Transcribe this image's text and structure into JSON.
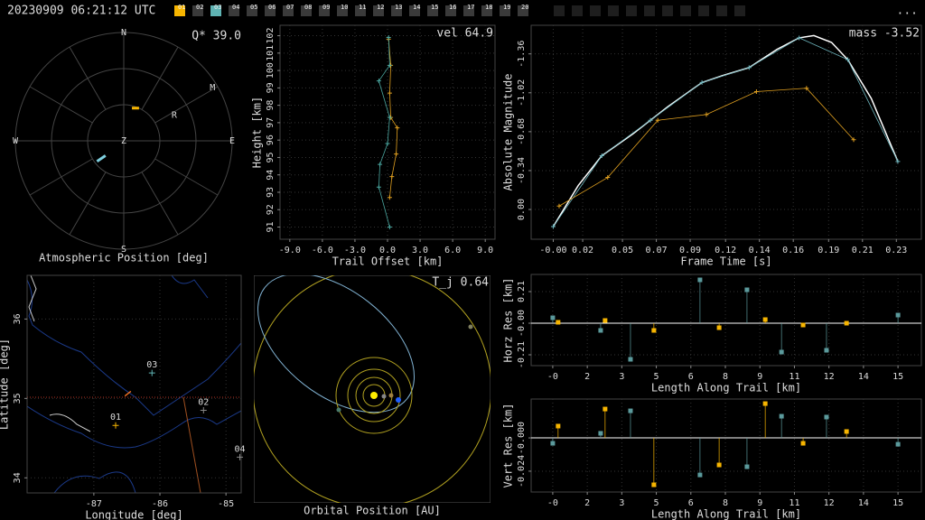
{
  "header": {
    "timestamp": "20230909 06:21:12 UTC",
    "menu": "...",
    "tabs": [
      "01",
      "02",
      "03",
      "04",
      "05",
      "06",
      "07",
      "08",
      "09",
      "10",
      "11",
      "12",
      "13",
      "14",
      "15",
      "16",
      "17",
      "18",
      "19",
      "20"
    ]
  },
  "chart_data": [
    {
      "type": "polar",
      "title": "Atmospheric Position [deg]",
      "annotation": "Q* 39.0",
      "compass": [
        "N",
        "E",
        "S",
        "W"
      ],
      "zenith_label": "Z",
      "rlim": [
        0,
        90
      ],
      "markers": [
        {
          "label": "M",
          "az": 59,
          "zd": 86
        },
        {
          "label": "R",
          "az": 63,
          "zd": 47
        }
      ],
      "series": [
        {
          "color": "#f7b500",
          "az": [
            14,
            25
          ],
          "zd": [
            28,
            30
          ]
        },
        {
          "color": "#7fd0e0",
          "az": [
            232.5,
            231
          ],
          "zd": [
            28,
            19.5
          ]
        }
      ]
    },
    {
      "type": "line",
      "xlabel": "Trail Offset [km]",
      "ylabel": "Height [km]",
      "annotation": "vel 64.9",
      "xlim": [
        -9.9,
        9.9
      ],
      "ylim": [
        90.3,
        102.6
      ],
      "grid": true,
      "xticks": [
        {
          "value": -9,
          "label": "-9.0"
        },
        {
          "value": -6,
          "label": "-6.0"
        },
        {
          "value": -3,
          "label": "-3.0"
        },
        {
          "value": 0,
          "label": "0.0"
        },
        {
          "value": 3,
          "label": "3.0"
        },
        {
          "value": 6,
          "label": "6.0"
        },
        {
          "value": 9,
          "label": "9.0"
        }
      ],
      "yticks": [
        91,
        92,
        93,
        94,
        95,
        96,
        97,
        98,
        99,
        100,
        101,
        102
      ],
      "series": [
        {
          "color": "#e0a020",
          "marker": "+",
          "x": [
            0.1,
            0.3,
            0.2,
            0.3,
            0.9,
            0.8,
            0.4,
            0.2
          ],
          "values": [
            101.8,
            100.3,
            98.7,
            97.3,
            96.7,
            95.2,
            93.9,
            92.7
          ]
        },
        {
          "color": "#4aa7a0",
          "marker": "+",
          "x": [
            0.1,
            0.2,
            -0.8,
            0.2,
            0,
            -0.7,
            -0.8,
            0.2
          ],
          "values": [
            101.9,
            100.3,
            99.4,
            97.3,
            95.8,
            94.6,
            93.3,
            91.0
          ]
        }
      ]
    },
    {
      "type": "line",
      "xlabel": "Frame Time [s]",
      "ylabel": "Absolute Magnitude",
      "annotation": "mass -3.52",
      "xlim": [
        -0.015,
        0.25
      ],
      "ylim": [
        0.26,
        -1.61
      ],
      "grid": true,
      "xticks": [
        {
          "value": 0,
          "label": "-0.00"
        },
        0.02,
        {
          "value": 0.047,
          "label": "0.05"
        },
        {
          "value": 0.07,
          "label": "0.07"
        },
        {
          "value": 0.093,
          "label": "0.09"
        },
        {
          "value": 0.117,
          "label": "0.12"
        },
        {
          "value": 0.14,
          "label": "0.14"
        },
        {
          "value": 0.163,
          "label": "0.16"
        },
        {
          "value": 0.187,
          "label": "0.19"
        },
        {
          "value": 0.21,
          "label": "0.21"
        },
        {
          "value": 0.233,
          "label": "0.23"
        }
      ],
      "yticks": [
        {
          "value": 0,
          "label": "0.00"
        },
        -0.34,
        -0.68,
        -1.02,
        -1.36
      ],
      "series": [
        {
          "color": "#ffffff",
          "marker": "none",
          "x": [
            0,
            0.017,
            0.033,
            0.054,
            0.078,
            0.101,
            0.115,
            0.133,
            0.152,
            0.167,
            0.177,
            0.189,
            0.2,
            0.216,
            0.234
          ],
          "values": [
            0.15,
            -0.21,
            -0.47,
            -0.66,
            -0.9,
            -1.11,
            -1.17,
            -1.24,
            -1.4,
            -1.5,
            -1.52,
            -1.46,
            -1.31,
            -0.97,
            -0.42
          ]
        },
        {
          "color": "#6fb8c0",
          "marker": "+",
          "x": [
            0,
            0.033,
            0.066,
            0.101,
            0.133,
            0.167,
            0.2,
            0.234
          ],
          "values": [
            0.15,
            -0.47,
            -0.78,
            -1.11,
            -1.24,
            -1.5,
            -1.31,
            -0.42
          ]
        },
        {
          "color": "#e0a020",
          "marker": "+",
          "x": [
            0.004,
            0.037,
            0.071,
            0.104,
            0.138,
            0.172,
            0.204
          ],
          "values": [
            -0.03,
            -0.28,
            -0.78,
            -0.83,
            -1.03,
            -1.06,
            -0.61
          ]
        }
      ]
    },
    {
      "type": "stem",
      "xlabel": "Length Along Trail [km]",
      "ylabel": "Horz Res [km]",
      "xlim": [
        -0.97,
        16.55
      ],
      "ylim": [
        -0.282,
        0.324
      ],
      "grid": true,
      "xticks": [
        {
          "value": 0,
          "label": "-0"
        },
        {
          "value": 1.55,
          "label": "2"
        },
        {
          "value": 3.1,
          "label": "3"
        },
        {
          "value": 4.65,
          "label": "5"
        },
        {
          "value": 6.2,
          "label": "6"
        },
        {
          "value": 7.75,
          "label": "8"
        },
        {
          "value": 9.3,
          "label": "9"
        },
        {
          "value": 10.85,
          "label": "11"
        },
        {
          "value": 12.4,
          "label": "12"
        },
        {
          "value": 13.95,
          "label": "14"
        },
        {
          "value": 15.5,
          "label": "15"
        }
      ],
      "yticks": [
        0.21,
        {
          "value": 0,
          "label": "-0.00"
        },
        -0.21
      ],
      "series": [
        {
          "color": "#5b9a9c",
          "x": [
            0,
            2.15,
            3.49,
            6.61,
            8.72,
            10.27,
            12.29,
            15.5
          ],
          "values": [
            0.036,
            -0.048,
            -0.24,
            0.288,
            0.222,
            -0.192,
            -0.18,
            0.054
          ]
        },
        {
          "color": "#f7b500",
          "x": [
            0.24,
            2.35,
            4.54,
            7.47,
            9.54,
            11.24,
            13.19
          ],
          "values": [
            0.006,
            0.018,
            -0.048,
            -0.03,
            0.024,
            -0.012,
            0
          ]
        }
      ]
    },
    {
      "type": "stem",
      "xlabel": "Length Along Trail [km]",
      "ylabel": "Vert Res [km]",
      "xlim": [
        -0.97,
        16.55
      ],
      "ylim": [
        -0.039,
        0.028
      ],
      "grid": true,
      "xticks": [
        {
          "value": 0,
          "label": "-0"
        },
        {
          "value": 1.55,
          "label": "2"
        },
        {
          "value": 3.1,
          "label": "3"
        },
        {
          "value": 4.65,
          "label": "5"
        },
        {
          "value": 6.2,
          "label": "6"
        },
        {
          "value": 7.75,
          "label": "8"
        },
        {
          "value": 9.3,
          "label": "9"
        },
        {
          "value": 10.85,
          "label": "11"
        },
        {
          "value": 12.4,
          "label": "12"
        },
        {
          "value": 13.95,
          "label": "14"
        },
        {
          "value": 15.5,
          "label": "15"
        }
      ],
      "yticks": [
        {
          "value": 0,
          "label": "-0.000"
        },
        -0.024
      ],
      "series": [
        {
          "color": "#5b9a9c",
          "x": [
            0,
            2.15,
            3.49,
            6.61,
            8.72,
            10.27,
            12.29,
            15.5
          ],
          "values": [
            -0.0039,
            0.0033,
            0.0195,
            -0.0267,
            -0.0208,
            0.0156,
            0.015,
            -0.0046
          ]
        },
        {
          "color": "#f7b500",
          "x": [
            0.24,
            2.35,
            4.54,
            7.47,
            9.54,
            11.24,
            13.19
          ],
          "values": [
            0.0085,
            0.0208,
            -0.0338,
            -0.0195,
            0.0247,
            -0.0039,
            0.0046
          ]
        }
      ]
    },
    {
      "type": "map",
      "xlabel": "Longitude [deg]",
      "ylabel": "Latitude [deg]",
      "xlim": [
        -88.01,
        -84.77
      ],
      "ylim": [
        33.81,
        36.55
      ],
      "grid": true,
      "xticks": [
        -87,
        -86,
        -85
      ],
      "yticks": [
        34,
        35,
        36
      ],
      "trace": {
        "color": "#f07020",
        "lon": [
          -86.53,
          -86.44
        ],
        "lat": [
          35.03,
          35.09
        ]
      },
      "stations": [
        {
          "label": "01",
          "color": "#f7b500",
          "lon": -86.67,
          "lat": 34.66
        },
        {
          "label": "02",
          "color": "#888888",
          "lon": -85.34,
          "lat": 34.85
        },
        {
          "label": "03",
          "color": "#5fb3b3",
          "lon": -86.12,
          "lat": 35.32
        },
        {
          "label": "04",
          "color": "#888888",
          "lon": -84.79,
          "lat": 34.26
        }
      ]
    },
    {
      "type": "orbit",
      "title": "Orbital Position [AU]",
      "annotation": "T_j 0.64"
    }
  ]
}
